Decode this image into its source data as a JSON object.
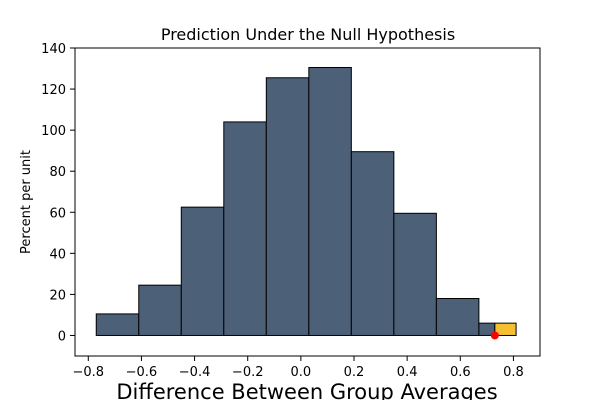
{
  "chart_data": {
    "type": "bar",
    "title": "Prediction Under the Null Hypothesis",
    "xlabel": "Difference Between Group Averages",
    "ylabel": "Percent per unit",
    "xlim": [
      -0.85,
      0.9
    ],
    "ylim": [
      -10,
      140
    ],
    "xticks": [
      -0.8,
      -0.6,
      -0.4,
      -0.2,
      0.0,
      0.2,
      0.4,
      0.6,
      0.8
    ],
    "xtick_labels": [
      "−0.8",
      "−0.6",
      "−0.4",
      "−0.2",
      "0.0",
      "0.2",
      "0.4",
      "0.6",
      "0.8"
    ],
    "yticks": [
      0,
      20,
      40,
      60,
      80,
      100,
      120,
      140
    ],
    "ytick_labels": [
      "0",
      "20",
      "40",
      "60",
      "80",
      "100",
      "120",
      "140"
    ],
    "grid": false,
    "legend": "none",
    "bins": [
      {
        "start": -0.77,
        "end": -0.61,
        "value": 10.5,
        "color": "#4c6078"
      },
      {
        "start": -0.61,
        "end": -0.45,
        "value": 24.5,
        "color": "#4c6078"
      },
      {
        "start": -0.45,
        "end": -0.29,
        "value": 62.5,
        "color": "#4c6078"
      },
      {
        "start": -0.29,
        "end": -0.13,
        "value": 104,
        "color": "#4c6078"
      },
      {
        "start": -0.13,
        "end": 0.03,
        "value": 125.5,
        "color": "#4c6078"
      },
      {
        "start": 0.03,
        "end": 0.19,
        "value": 130.5,
        "color": "#4c6078"
      },
      {
        "start": 0.19,
        "end": 0.35,
        "value": 89.5,
        "color": "#4c6078"
      },
      {
        "start": 0.35,
        "end": 0.51,
        "value": 59.5,
        "color": "#4c6078"
      },
      {
        "start": 0.51,
        "end": 0.67,
        "value": 18.0,
        "color": "#4c6078"
      },
      {
        "start": 0.67,
        "end": 0.73,
        "value": 6.0,
        "color": "#4c6078"
      },
      {
        "start": 0.73,
        "end": 0.81,
        "value": 6.0,
        "color": "#f5c030"
      }
    ],
    "observed_point": {
      "x": 0.73,
      "y": 0,
      "color": "#ff0000"
    }
  }
}
